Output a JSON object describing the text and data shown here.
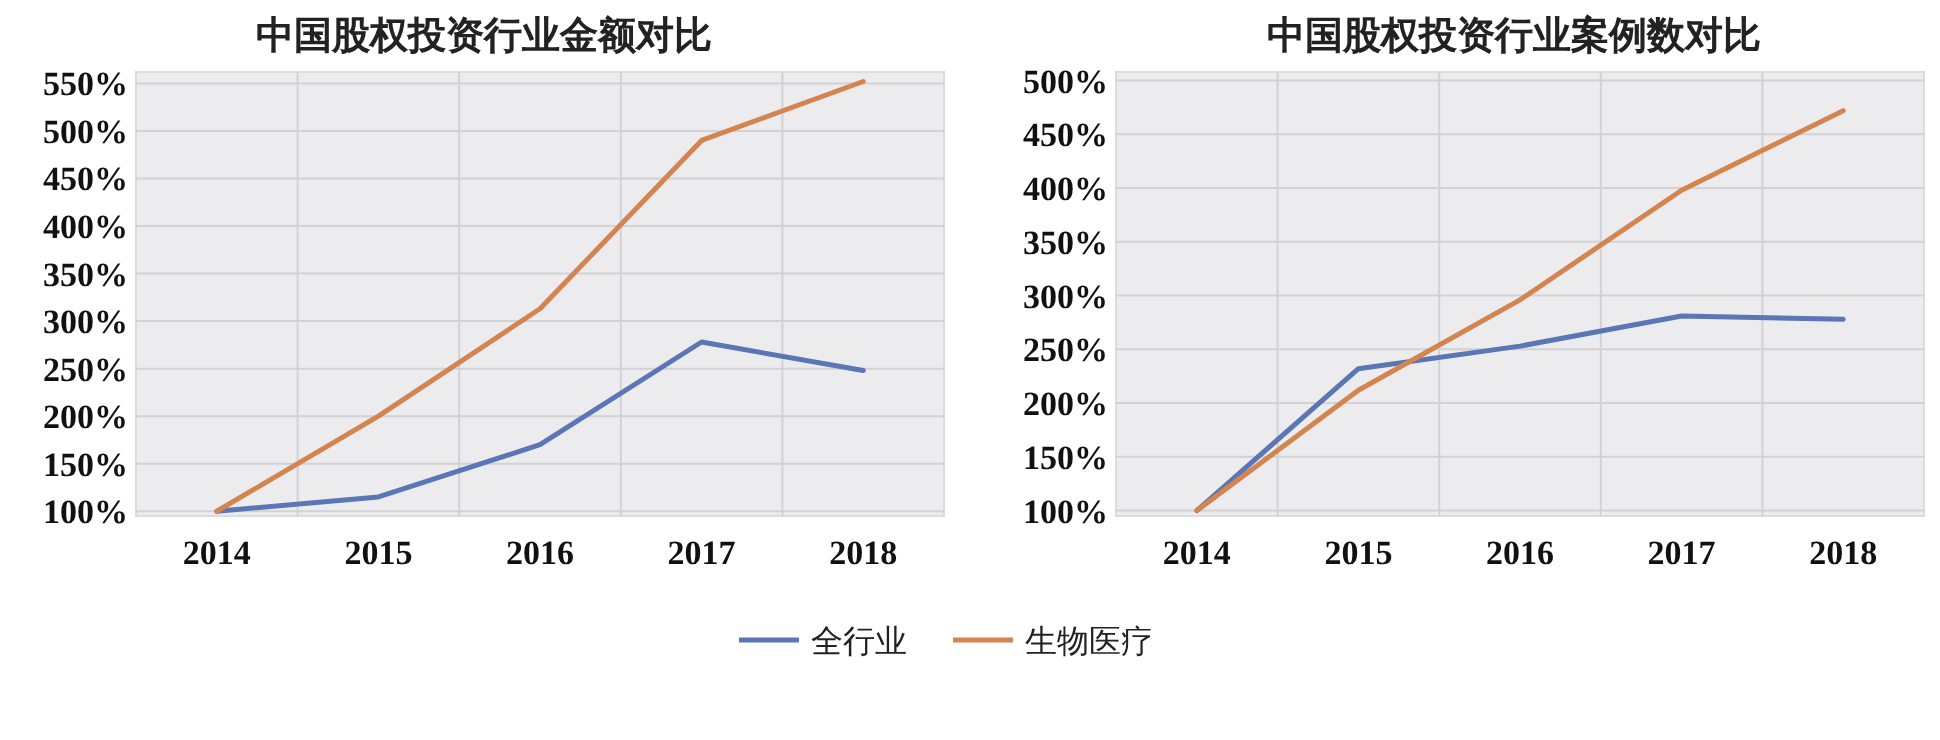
{
  "chart_data": [
    {
      "type": "line",
      "title": "中国股权投资行业金额对比",
      "categories": [
        "2014",
        "2015",
        "2016",
        "2017",
        "2018"
      ],
      "series": [
        {
          "name": "全行业",
          "color": "#5a76b4",
          "values": [
            100,
            115,
            170,
            278,
            248
          ]
        },
        {
          "name": "生物医疗",
          "color": "#d4854f",
          "values": [
            100,
            200,
            313,
            490,
            552
          ]
        }
      ],
      "ylim": [
        95,
        562
      ],
      "yticks": [
        {
          "value": 100,
          "label": "100%"
        },
        {
          "value": 150,
          "label": "150%"
        },
        {
          "value": 200,
          "label": "200%"
        },
        {
          "value": 250,
          "label": "250%"
        },
        {
          "value": 300,
          "label": "300%"
        },
        {
          "value": 350,
          "label": "350%"
        },
        {
          "value": 400,
          "label": "400%"
        },
        {
          "value": 450,
          "label": "450%"
        },
        {
          "value": 500,
          "label": "500%"
        },
        {
          "value": 550,
          "label": "550%"
        }
      ],
      "grid": true,
      "legend": "bottom"
    },
    {
      "type": "line",
      "title": "中国股权投资行业案例数对比",
      "categories": [
        "2014",
        "2015",
        "2016",
        "2017",
        "2018"
      ],
      "series": [
        {
          "name": "全行业",
          "color": "#5a76b4",
          "values": [
            100,
            232,
            253,
            281,
            278
          ]
        },
        {
          "name": "生物医疗",
          "color": "#d4854f",
          "values": [
            100,
            212,
            296,
            398,
            472
          ]
        }
      ],
      "ylim": [
        95,
        508
      ],
      "yticks": [
        {
          "value": 100,
          "label": "100%"
        },
        {
          "value": 150,
          "label": "150%"
        },
        {
          "value": 200,
          "label": "200%"
        },
        {
          "value": 250,
          "label": "250%"
        },
        {
          "value": 300,
          "label": "300%"
        },
        {
          "value": 350,
          "label": "350%"
        },
        {
          "value": 400,
          "label": "400%"
        },
        {
          "value": 450,
          "label": "450%"
        },
        {
          "value": 500,
          "label": "500%"
        }
      ],
      "grid": true
    }
  ]
}
